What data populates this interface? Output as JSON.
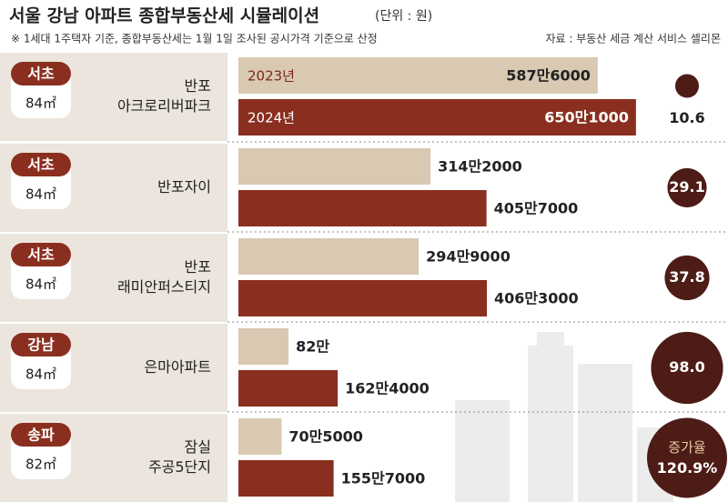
{
  "chart_data": {
    "type": "bar",
    "orientation": "horizontal",
    "title": "서울 강남 아파트 종합부동산세 시뮬레이션",
    "unit": "(단위 : 원)",
    "note": "※ 1세대 1주택자 기준, 종합부동산세는 1월 1일 조사된 공시가격 기준으로 산정",
    "source": "자료 :  부동산 세금 계산 서비스 셀리몬",
    "regions": [
      "서초",
      "서초",
      "서초",
      "강남",
      "송파"
    ],
    "areas": [
      "84㎡",
      "84㎡",
      "84㎡",
      "84㎡",
      "82㎡"
    ],
    "categories": [
      [
        "반포",
        "아크로리버파크"
      ],
      [
        "반포자이"
      ],
      [
        "반포",
        "래미안퍼스티지"
      ],
      [
        "은마아파트"
      ],
      [
        "잠실",
        "주공5단지"
      ]
    ],
    "series": [
      {
        "name": "2023년",
        "color": "#d9c9b2",
        "values": [
          5876000,
          3142000,
          2949000,
          820000,
          705000
        ],
        "value_labels": [
          "587만6000",
          "314만2000",
          "294만9000",
          "82만",
          "70만5000"
        ]
      },
      {
        "name": "2024년",
        "color": "#8a2f1f",
        "values": [
          6501000,
          4057000,
          4063000,
          1624000,
          1557000
        ],
        "value_labels": [
          "650만1000",
          "405만7000",
          "406만3000",
          "162만4000",
          "155만7000"
        ]
      }
    ],
    "growth": {
      "name": "증가율",
      "color": "#4d1c16",
      "values": [
        10.6,
        29.1,
        37.8,
        98.0,
        120.9
      ],
      "value_labels": [
        "10.6",
        "29.1",
        "37.8",
        "98.0",
        "120.9%"
      ]
    }
  }
}
